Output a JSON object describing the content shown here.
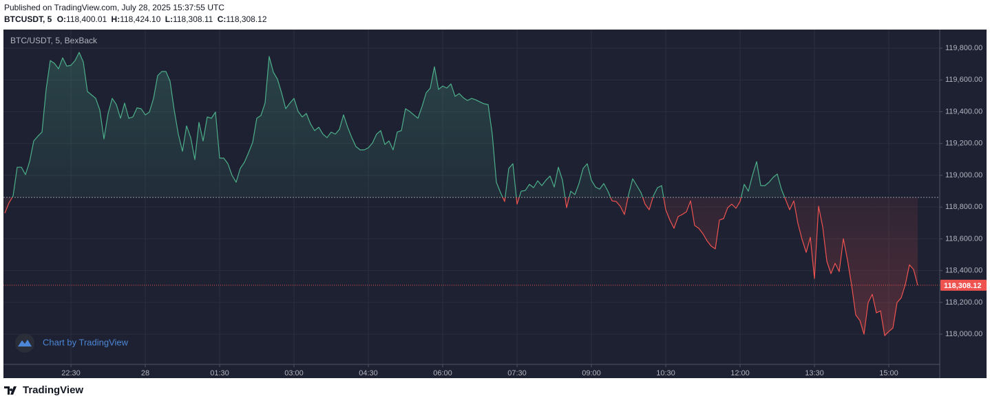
{
  "header": {
    "published": "Published on TradingView.com, July 28, 2025 15:37:55 UTC",
    "symbol": "BTCUSDT, 5",
    "ohlc": [
      {
        "label": "O:",
        "value": "118,400.01"
      },
      {
        "label": "H:",
        "value": "118,424.10"
      },
      {
        "label": "L:",
        "value": "118,308.11"
      },
      {
        "label": "C:",
        "value": "118,308.12"
      }
    ]
  },
  "chart_data": {
    "type": "baseline",
    "legend": "BTC/USDT, 5, BexBack",
    "watermark": "Chart by TradingView",
    "price_label": "118,308.12",
    "baseline": 118861,
    "up_color": "#4caf8a",
    "down_color": "#ef5350",
    "grid": true,
    "categories": [
      null,
      null,
      null,
      null,
      null,
      null,
      null,
      null,
      null,
      null,
      null,
      null,
      null,
      null,
      null,
      null,
      "22:30",
      null,
      null,
      null,
      null,
      null,
      null,
      null,
      null,
      null,
      null,
      null,
      null,
      null,
      null,
      null,
      null,
      null,
      "28",
      null,
      null,
      null,
      null,
      null,
      null,
      null,
      null,
      null,
      null,
      null,
      null,
      null,
      null,
      null,
      null,
      null,
      "01:30",
      null,
      null,
      null,
      null,
      null,
      null,
      null,
      null,
      null,
      null,
      null,
      null,
      null,
      null,
      null,
      null,
      null,
      "03:00",
      null,
      null,
      null,
      null,
      null,
      null,
      null,
      null,
      null,
      null,
      null,
      null,
      null,
      null,
      null,
      null,
      null,
      "04:30",
      null,
      null,
      null,
      null,
      null,
      null,
      null,
      null,
      null,
      null,
      null,
      null,
      null,
      null,
      null,
      null,
      null,
      "06:00",
      null,
      null,
      null,
      null,
      null,
      null,
      null,
      null,
      null,
      null,
      null,
      null,
      null,
      null,
      null,
      null,
      null,
      "07:30",
      null,
      null,
      null,
      null,
      null,
      null,
      null,
      null,
      null,
      null,
      null,
      null,
      null,
      null,
      null,
      null,
      null,
      "09:00",
      null,
      null,
      null,
      null,
      null,
      null,
      null,
      null,
      null,
      null,
      null,
      null,
      null,
      null,
      null,
      null,
      null,
      "10:30",
      null,
      null,
      null,
      null,
      null,
      null,
      null,
      null,
      null,
      null,
      null,
      null,
      null,
      null,
      null,
      null,
      null,
      "12:00",
      null,
      null,
      null,
      null,
      null,
      null,
      null,
      null,
      null,
      null,
      null,
      null,
      null,
      null,
      null,
      null,
      null,
      "13:30",
      null,
      null,
      null,
      null,
      null,
      null,
      null,
      null,
      null,
      null,
      null,
      null,
      null,
      null,
      null,
      null,
      null,
      "15:00",
      null,
      null,
      null,
      null,
      null,
      null,
      null
    ],
    "values": [
      118762,
      118826,
      118870,
      119051,
      119051,
      119004,
      119086,
      119216,
      119246,
      119272,
      119540,
      119722,
      119705,
      119670,
      119739,
      119687,
      119692,
      119722,
      119774,
      119713,
      119527,
      119506,
      119484,
      119411,
      119229,
      119389,
      119484,
      119445,
      119359,
      119454,
      119359,
      119367,
      119424,
      119419,
      119380,
      119398,
      119484,
      119627,
      119653,
      119653,
      119592,
      119411,
      119259,
      119151,
      119311,
      119237,
      119099,
      119333,
      119216,
      119367,
      119359,
      119398,
      119108,
      119108,
      119073,
      119000,
      118956,
      119043,
      119082,
      119142,
      119207,
      119359,
      119376,
      119454,
      119748,
      119649,
      119605,
      119519,
      119419,
      119454,
      119484,
      119402,
      119367,
      119389,
      119324,
      119281,
      119302,
      119259,
      119237,
      119272,
      119259,
      119289,
      119380,
      119302,
      119237,
      119181,
      119160,
      119160,
      119173,
      119203,
      119259,
      119281,
      119194,
      119216,
      119160,
      119272,
      119281,
      119419,
      119402,
      119380,
      119359,
      119432,
      119519,
      119549,
      119683,
      119540,
      119562,
      119549,
      119575,
      119497,
      119514,
      119488,
      119471,
      119484,
      119475,
      119462,
      119450,
      119445,
      119259,
      118956,
      118891,
      118835,
      119043,
      119073,
      118818,
      118900,
      118904,
      118943,
      118922,
      118965,
      118935,
      118969,
      118995,
      118926,
      119051,
      118969,
      118796,
      118900,
      118878,
      118948,
      119043,
      119073,
      118969,
      118926,
      118913,
      118948,
      118900,
      118839,
      118835,
      118805,
      118753,
      118878,
      118978,
      118935,
      118891,
      118818,
      118783,
      118870,
      118922,
      118935,
      118783,
      118718,
      118666,
      118740,
      118753,
      118770,
      118839,
      118684,
      118666,
      118632,
      118588,
      118554,
      118537,
      118718,
      118727,
      118796,
      118818,
      118792,
      118835,
      118943,
      118900,
      119000,
      119086,
      118935,
      118935,
      118956,
      118987,
      119008,
      118913,
      118848,
      118783,
      118839,
      118697,
      118597,
      118515,
      118610,
      118350,
      118805,
      118675,
      118459,
      118381,
      118446,
      118394,
      118601,
      118467,
      118307,
      118121,
      118086,
      118000,
      118199,
      118251,
      118134,
      118147,
      117991,
      118017,
      118039,
      118199,
      118229,
      118312,
      118437,
      118407,
      118308.12
    ],
    "ylim": [
      117810,
      119917
    ],
    "yticks": [
      {
        "value": 118000,
        "label": "118,000.00"
      },
      {
        "value": 118200,
        "label": "118,200.00"
      },
      {
        "value": 118400,
        "label": "118,400.00"
      },
      {
        "value": 118600,
        "label": "118,600.00"
      },
      {
        "value": 118800,
        "label": "118,800.00"
      },
      {
        "value": 119000,
        "label": "119,000.00"
      },
      {
        "value": 119200,
        "label": "119,200.00"
      },
      {
        "value": 119400,
        "label": "119,400.00"
      },
      {
        "value": 119600,
        "label": "119,600.00"
      },
      {
        "value": 119800,
        "label": "119,800.00"
      }
    ]
  },
  "footer": {
    "brand": "TradingView"
  }
}
